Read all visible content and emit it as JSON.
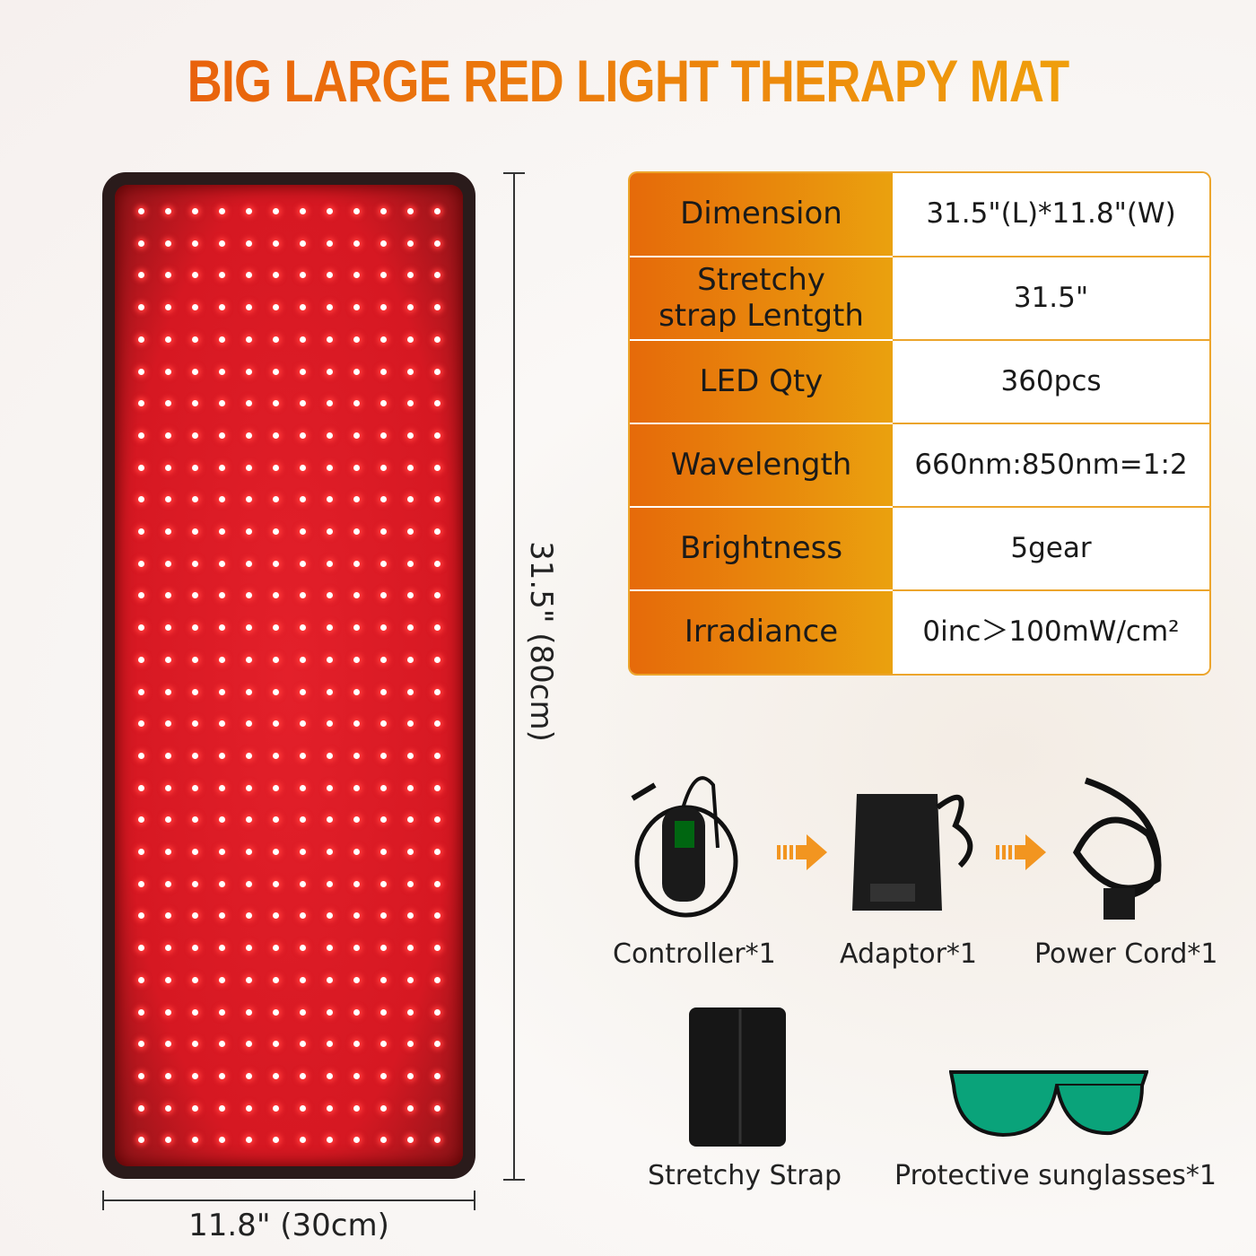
{
  "title": "BIG LARGE RED LIGHT THERAPY MAT",
  "mat": {
    "led_columns": 12,
    "led_rows": 30,
    "length_label": "31.5\" (80cm)",
    "width_label": "11.8\" (30cm)"
  },
  "specs": [
    {
      "key": "Dimension",
      "value": "31.5\"(L)*11.8\"(W)"
    },
    {
      "key": "Stretchy strap Lentgth",
      "value": "31.5\""
    },
    {
      "key": "LED Qty",
      "value": "360pcs"
    },
    {
      "key": "Wavelength",
      "value": "660nm:850nm=1:2"
    },
    {
      "key": "Brightness",
      "value": "5gear"
    },
    {
      "key": "Irradiance",
      "value": "0inc＞100mW/cm²"
    }
  ],
  "accessories": [
    "Controller*1",
    "Adaptor*1",
    "Power Cord*1",
    "Stretchy Strap",
    "Protective sunglasses*1"
  ],
  "colors": {
    "title": "#ea6d0a",
    "table_key": "#e66a0a",
    "table_border": "#eca52c",
    "led_panel": "#d61822"
  }
}
